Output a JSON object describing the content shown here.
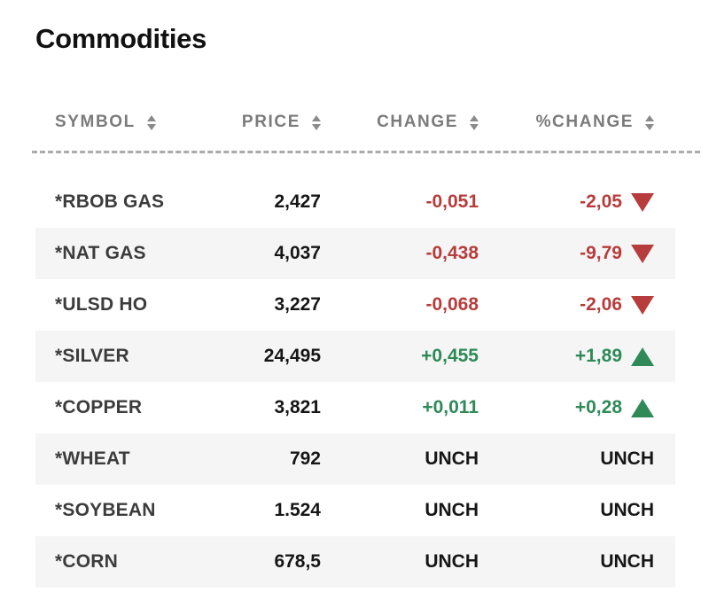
{
  "widget": {
    "title": "Commodities",
    "table": {
      "columns": [
        {
          "key": "symbol",
          "label": "SYMBOL",
          "sortable": true
        },
        {
          "key": "price",
          "label": "PRICE",
          "sortable": true
        },
        {
          "key": "change",
          "label": "CHANGE",
          "sortable": true
        },
        {
          "key": "pct_change",
          "label": "%CHANGE",
          "sortable": true
        }
      ],
      "rows": [
        {
          "symbol": "*RBOB GAS",
          "price": "2,427",
          "change": "-0,051",
          "pct_change": "-2,05",
          "direction": "down"
        },
        {
          "symbol": "*NAT GAS",
          "price": "4,037",
          "change": "-0,438",
          "pct_change": "-9,79",
          "direction": "down"
        },
        {
          "symbol": "*ULSD HO",
          "price": "3,227",
          "change": "-0,068",
          "pct_change": "-2,06",
          "direction": "down"
        },
        {
          "symbol": "*SILVER",
          "price": "24,495",
          "change": "+0,455",
          "pct_change": "+1,89",
          "direction": "up"
        },
        {
          "symbol": "*COPPER",
          "price": "3,821",
          "change": "+0,011",
          "pct_change": "+0,28",
          "direction": "up"
        },
        {
          "symbol": "*WHEAT",
          "price": "792",
          "change": "UNCH",
          "pct_change": "UNCH",
          "direction": "unch"
        },
        {
          "symbol": "*SOYBEAN",
          "price": "1.524",
          "change": "UNCH",
          "pct_change": "UNCH",
          "direction": "unch"
        },
        {
          "symbol": "*CORN",
          "price": "678,5",
          "change": "UNCH",
          "pct_change": "UNCH",
          "direction": "unch"
        }
      ]
    },
    "icons": {
      "sort": "sort-arrows (triangle up + triangle down)",
      "up": "triangle-up",
      "down": "triangle-down"
    },
    "colors": {
      "negative": "#b73c3c",
      "positive": "#2f8a58",
      "unchanged": "#161616",
      "header_text": "#7b7b7b",
      "symbol_text": "#3c3c3c",
      "row_alt_background": "#f5f5f5",
      "divider": "#ababab"
    }
  }
}
